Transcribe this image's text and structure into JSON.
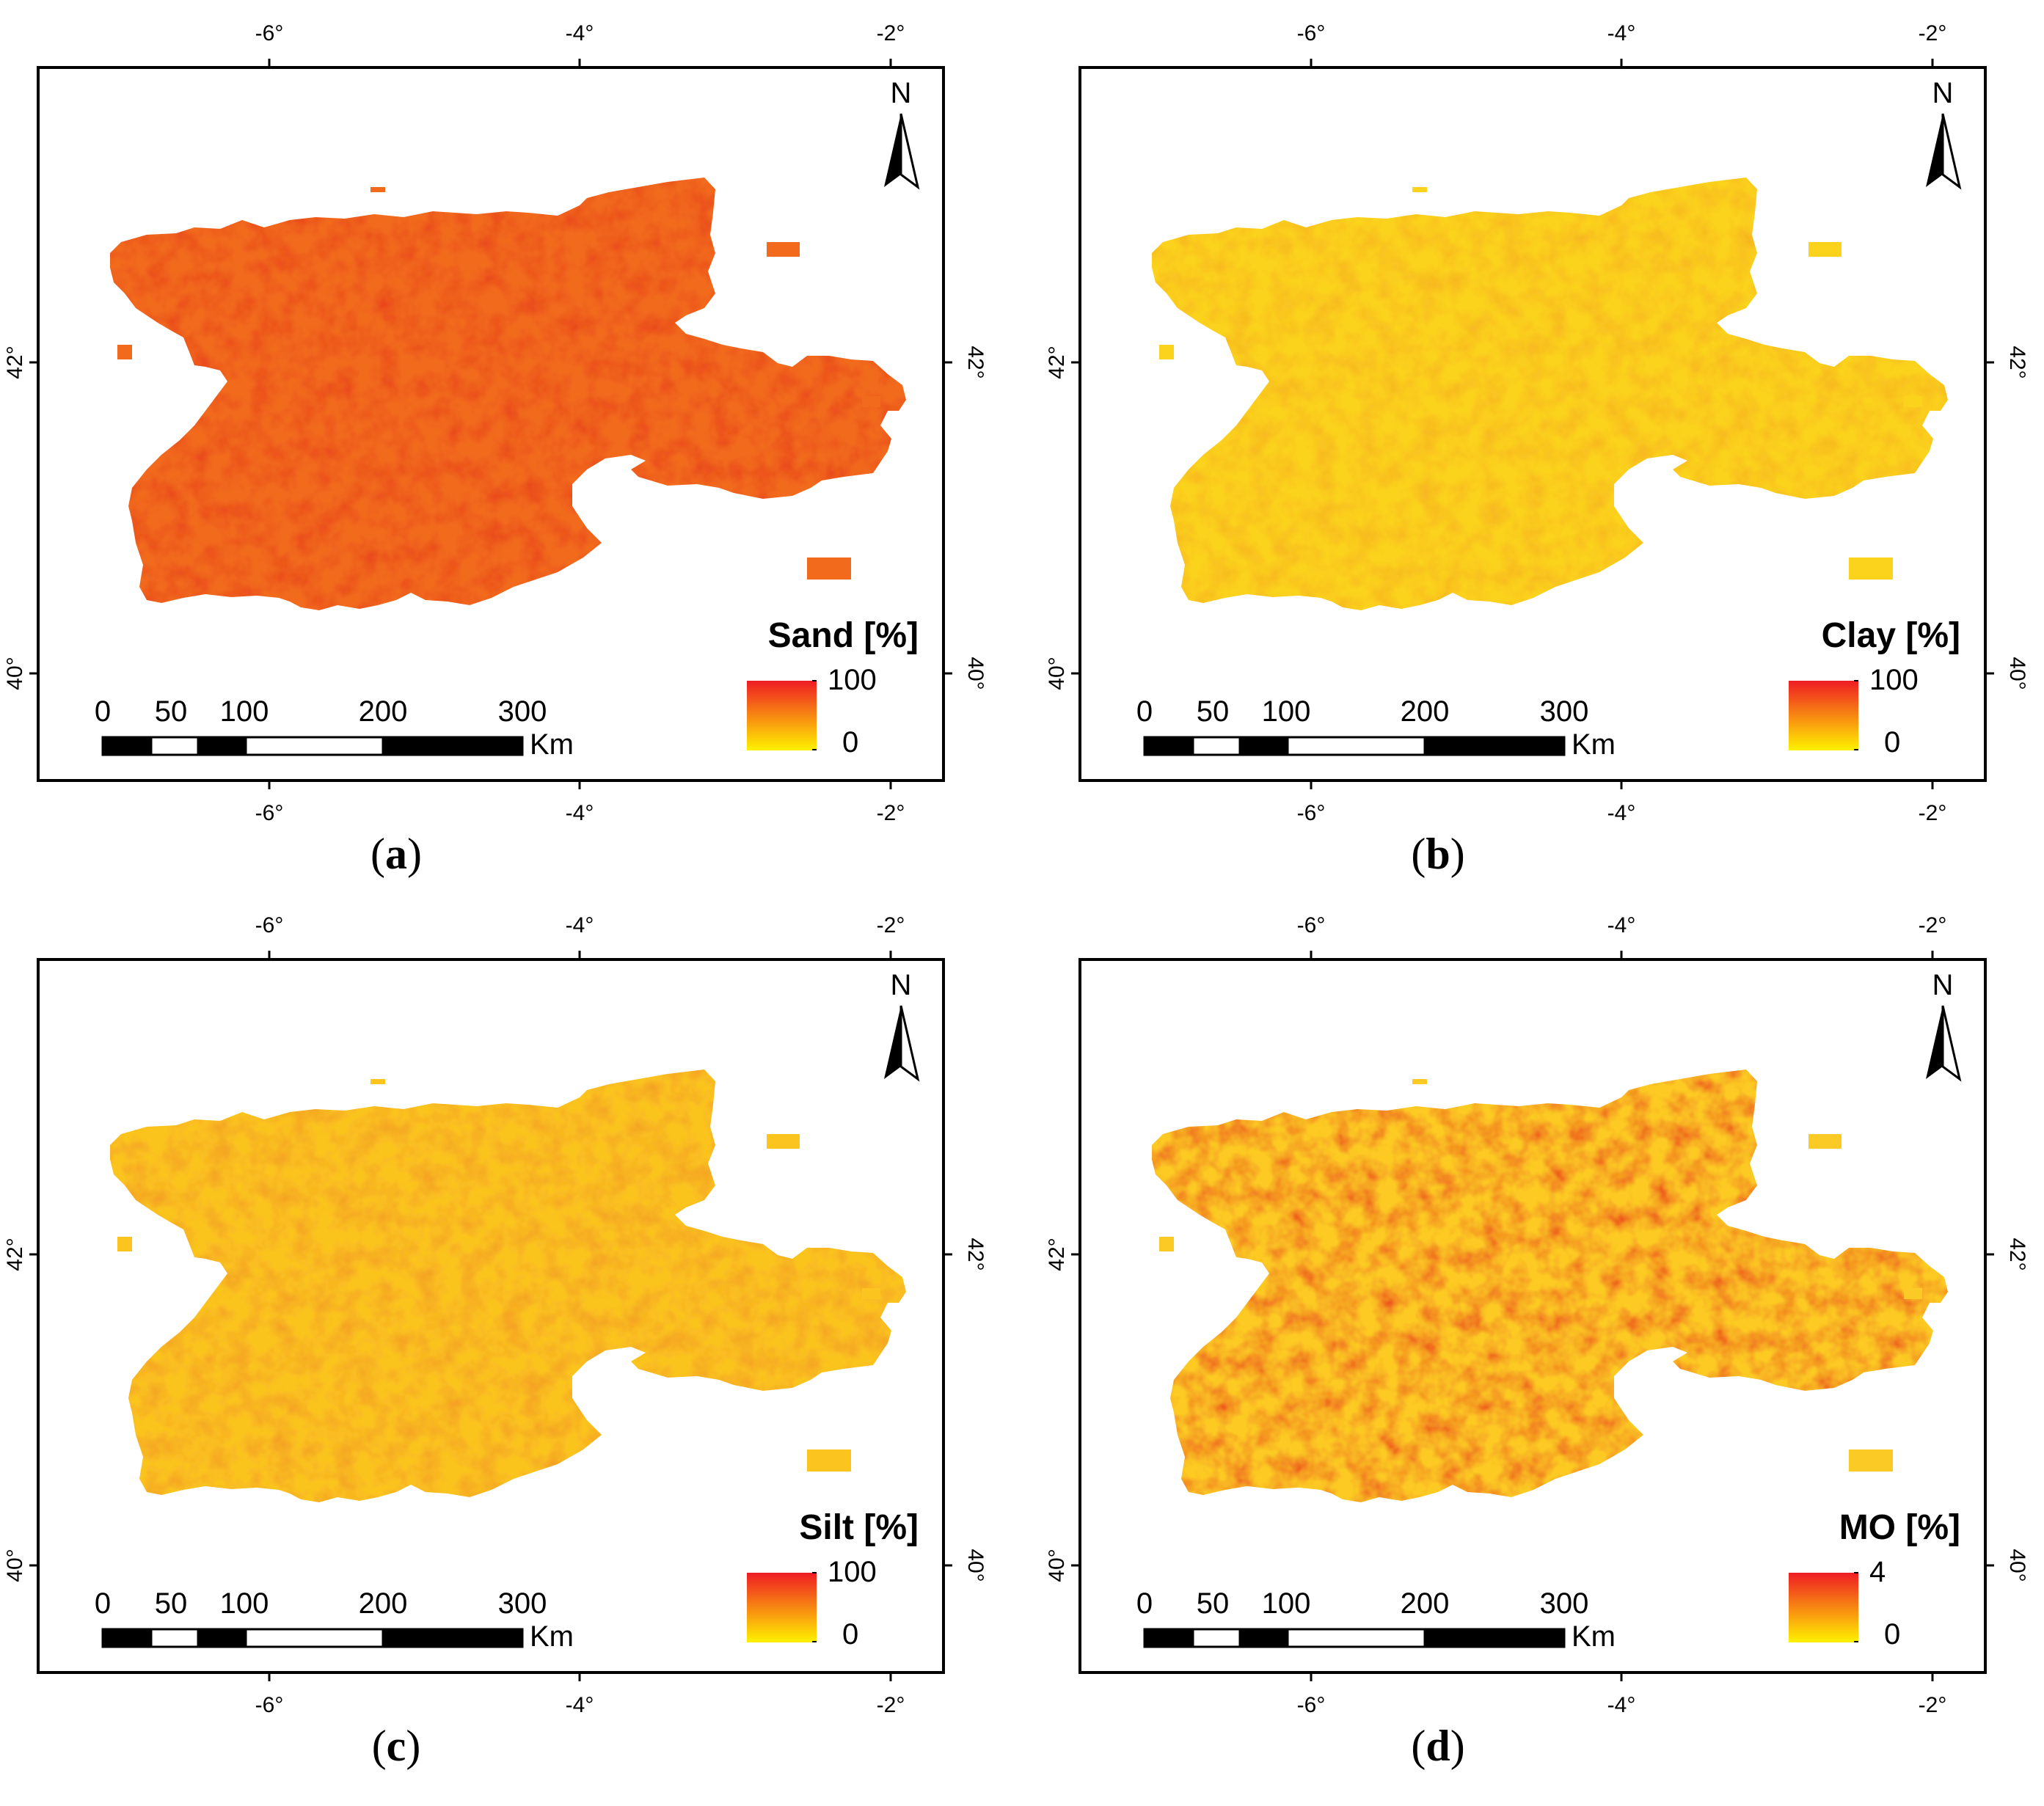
{
  "panels": [
    {
      "id": "a",
      "caption_letter": "a",
      "legend_title": "Sand [%]",
      "legend_max": "100",
      "legend_min": "0",
      "ramp": "sand"
    },
    {
      "id": "b",
      "caption_letter": "b",
      "legend_title": "Clay [%]",
      "legend_max": "100",
      "legend_min": "0",
      "ramp": "clay"
    },
    {
      "id": "c",
      "caption_letter": "c",
      "legend_title": "Silt [%]",
      "legend_max": "100",
      "legend_min": "0",
      "ramp": "silt"
    },
    {
      "id": "d",
      "caption_letter": "d",
      "legend_title": "MO [%]",
      "legend_max": "4",
      "legend_min": "0",
      "ramp": "mo"
    }
  ],
  "axes": {
    "lon_ticks": [
      "-6°",
      "-4°",
      "-2°"
    ],
    "lat_ticks": [
      "42°",
      "40°"
    ]
  },
  "scale_bar": {
    "labels": [
      "0",
      "50",
      "100",
      "200",
      "300"
    ],
    "unit": "Km"
  },
  "north_arrow": {
    "label": "N"
  },
  "colors": {
    "sand": {
      "base": "#f26b1d",
      "light": "#f79a2a",
      "dark": "#e8441a"
    },
    "clay": {
      "base": "#fbd21c",
      "light": "#ffe81a",
      "dark": "#f7b41f"
    },
    "silt": {
      "base": "#fbc41f",
      "light": "#ffe31b",
      "dark": "#f39b23"
    },
    "mo": {
      "base": "#fcca24",
      "light": "#ffe52a",
      "dark": "#ec2b1c"
    },
    "legend_top": "#ee1c24",
    "legend_bottom": "#fff200"
  }
}
